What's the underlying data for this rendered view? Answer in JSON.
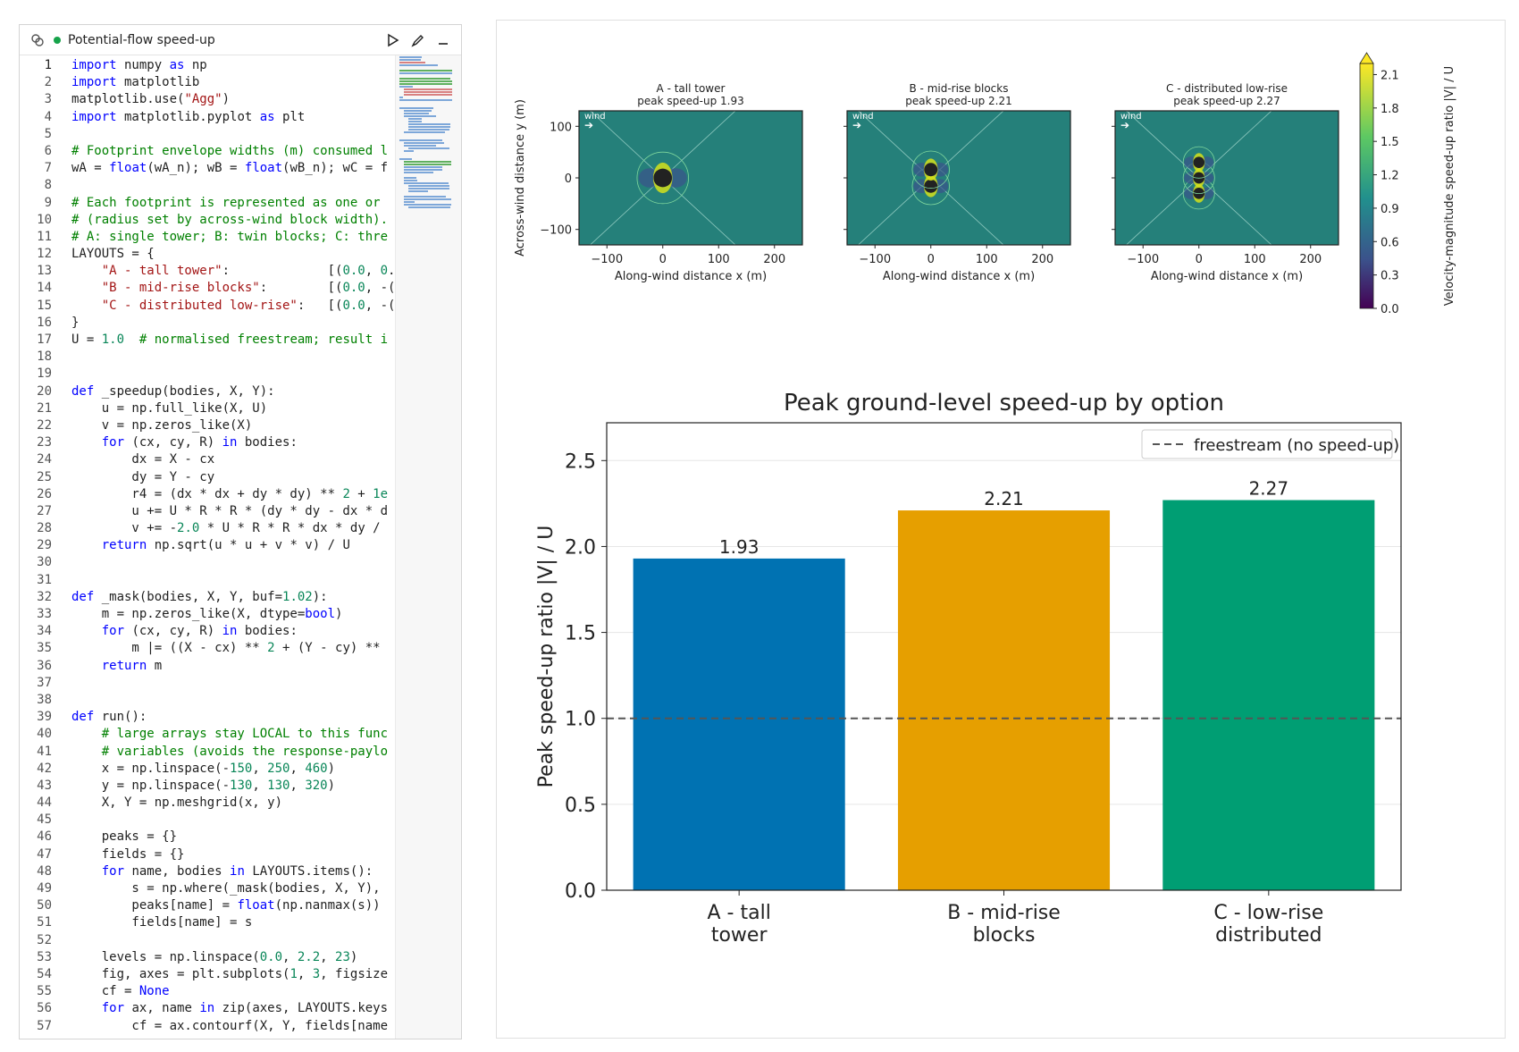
{
  "editor": {
    "title": "Potential-flow speed-up",
    "icons": [
      "cells-icon",
      "run-icon",
      "edit-icon",
      "minimize-icon"
    ],
    "lines": [
      "import numpy as np",
      "import matplotlib",
      "matplotlib.use(\"Agg\")",
      "import matplotlib.pyplot as plt",
      "",
      "# Footprint envelope widths (m) consumed l",
      "wA = float(wA_n); wB = float(wB_n); wC = f",
      "",
      "# Each footprint is represented as one or",
      "# (radius set by across-wind block width).",
      "# A: single tower; B: twin blocks; C: thre",
      "LAYOUTS = {",
      "    \"A - tall tower\":             [(0.0, 0.",
      "    \"B - mid-rise blocks\":        [(0.0, -(",
      "    \"C - distributed low-rise\":   [(0.0, -(",
      "}",
      "U = 1.0  # normalised freestream; result i",
      "",
      "",
      "def _speedup(bodies, X, Y):",
      "    u = np.full_like(X, U)",
      "    v = np.zeros_like(X)",
      "    for (cx, cy, R) in bodies:",
      "        dx = X - cx",
      "        dy = Y - cy",
      "        r4 = (dx * dx + dy * dy) ** 2 + 1e",
      "        u += U * R * R * (dy * dy - dx * d",
      "        v += -2.0 * U * R * R * dx * dy /",
      "    return np.sqrt(u * u + v * v) / U",
      "",
      "",
      "def _mask(bodies, X, Y, buf=1.02):",
      "    m = np.zeros_like(X, dtype=bool)",
      "    for (cx, cy, R) in bodies:",
      "        m |= ((X - cx) ** 2 + (Y - cy) **",
      "    return m",
      "",
      "",
      "def run():",
      "    # large arrays stay LOCAL to this func",
      "    # variables (avoids the response-paylo",
      "    x = np.linspace(-150, 250, 460)",
      "    y = np.linspace(-130, 130, 320)",
      "    X, Y = np.meshgrid(x, y)",
      "",
      "    peaks = {}",
      "    fields = {}",
      "    for name, bodies in LAYOUTS.items():",
      "        s = np.where(_mask(bodies, X, Y),",
      "        peaks[name] = float(np.nanmax(s))",
      "        fields[name] = s",
      "",
      "    levels = np.linspace(0.0, 2.2, 23)",
      "    fig, axes = plt.subplots(1, 3, figsize",
      "    cf = None",
      "    for ax, name in zip(axes, LAYOUTS.keys",
      "        cf = ax.contourf(X, Y, fields[name"
    ]
  },
  "contour": {
    "panels": [
      {
        "title1": "A - tall tower",
        "title2": "peak speed-up 1.93"
      },
      {
        "title1": "B - mid-rise blocks",
        "title2": "peak speed-up 2.21"
      },
      {
        "title1": "C - distributed low-rise",
        "title2": "peak speed-up 2.27"
      }
    ],
    "wind_label": "wind",
    "xlabel": "Along-wind distance x (m)",
    "ylabel": "Across-wind distance y (m)",
    "xticks": [
      "−100",
      "0",
      "100",
      "200"
    ],
    "yticks": [
      "100",
      "0",
      "−100"
    ],
    "colorbar_label": "Velocity-magnitude speed-up ratio  |V| / U",
    "colorbar_ticks": [
      "2.1",
      "1.8",
      "1.5",
      "1.2",
      "0.9",
      "0.6",
      "0.3",
      "0.0"
    ]
  },
  "chart_data": {
    "type": "bar",
    "title": "Peak ground-level speed-up by option",
    "categories": [
      "A - tall\ntower",
      "B - mid-rise\nblocks",
      "C - low-rise\ndistributed"
    ],
    "values": [
      1.93,
      2.21,
      2.27
    ],
    "value_labels": [
      "1.93",
      "2.21",
      "2.27"
    ],
    "colors": [
      "#0072b2",
      "#e69f00",
      "#009e73"
    ],
    "ylabel": "Peak speed-up ratio  |V| / U",
    "ylim": [
      0,
      2.72
    ],
    "yticks": [
      "0.0",
      "0.5",
      "1.0",
      "1.5",
      "2.0",
      "2.5"
    ],
    "reference_line": {
      "value": 1.0,
      "label": "freestream (no speed-up)"
    },
    "legend": "top-right",
    "grid": "y"
  }
}
